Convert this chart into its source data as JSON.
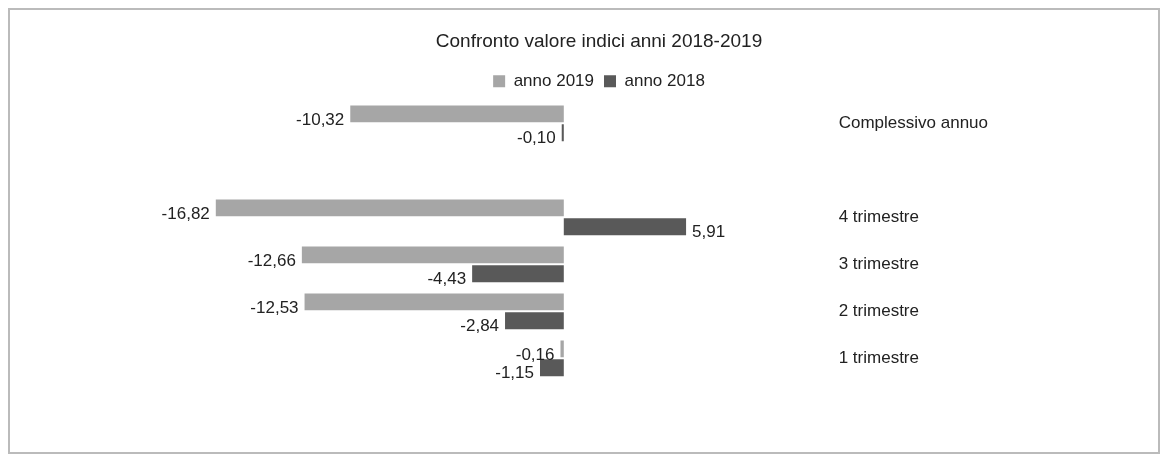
{
  "chart_data": {
    "type": "bar",
    "orientation": "horizontal",
    "title": "Confronto valore indici anni 2018-2019",
    "categories": [
      "Complessivo annuo",
      null,
      "4 trimestre",
      "3 trimestre",
      "2 trimestre",
      "1 trimestre"
    ],
    "series": [
      {
        "name": "anno 2019",
        "color": "#a6a6a6",
        "values": [
          -10.32,
          null,
          -16.82,
          -12.66,
          -12.53,
          -0.16
        ],
        "value_labels": [
          "-10,32",
          null,
          "-16,82",
          "-12,66",
          "-12,53",
          "-0,16"
        ]
      },
      {
        "name": "anno 2018",
        "color": "#595959",
        "values": [
          -0.1,
          null,
          5.91,
          -4.43,
          -2.84,
          -1.15
        ],
        "value_labels": [
          "-0,10",
          null,
          "5,91",
          "-4,43",
          "-2,84",
          "-1,15"
        ]
      }
    ],
    "legend": "top",
    "grid": false
  }
}
